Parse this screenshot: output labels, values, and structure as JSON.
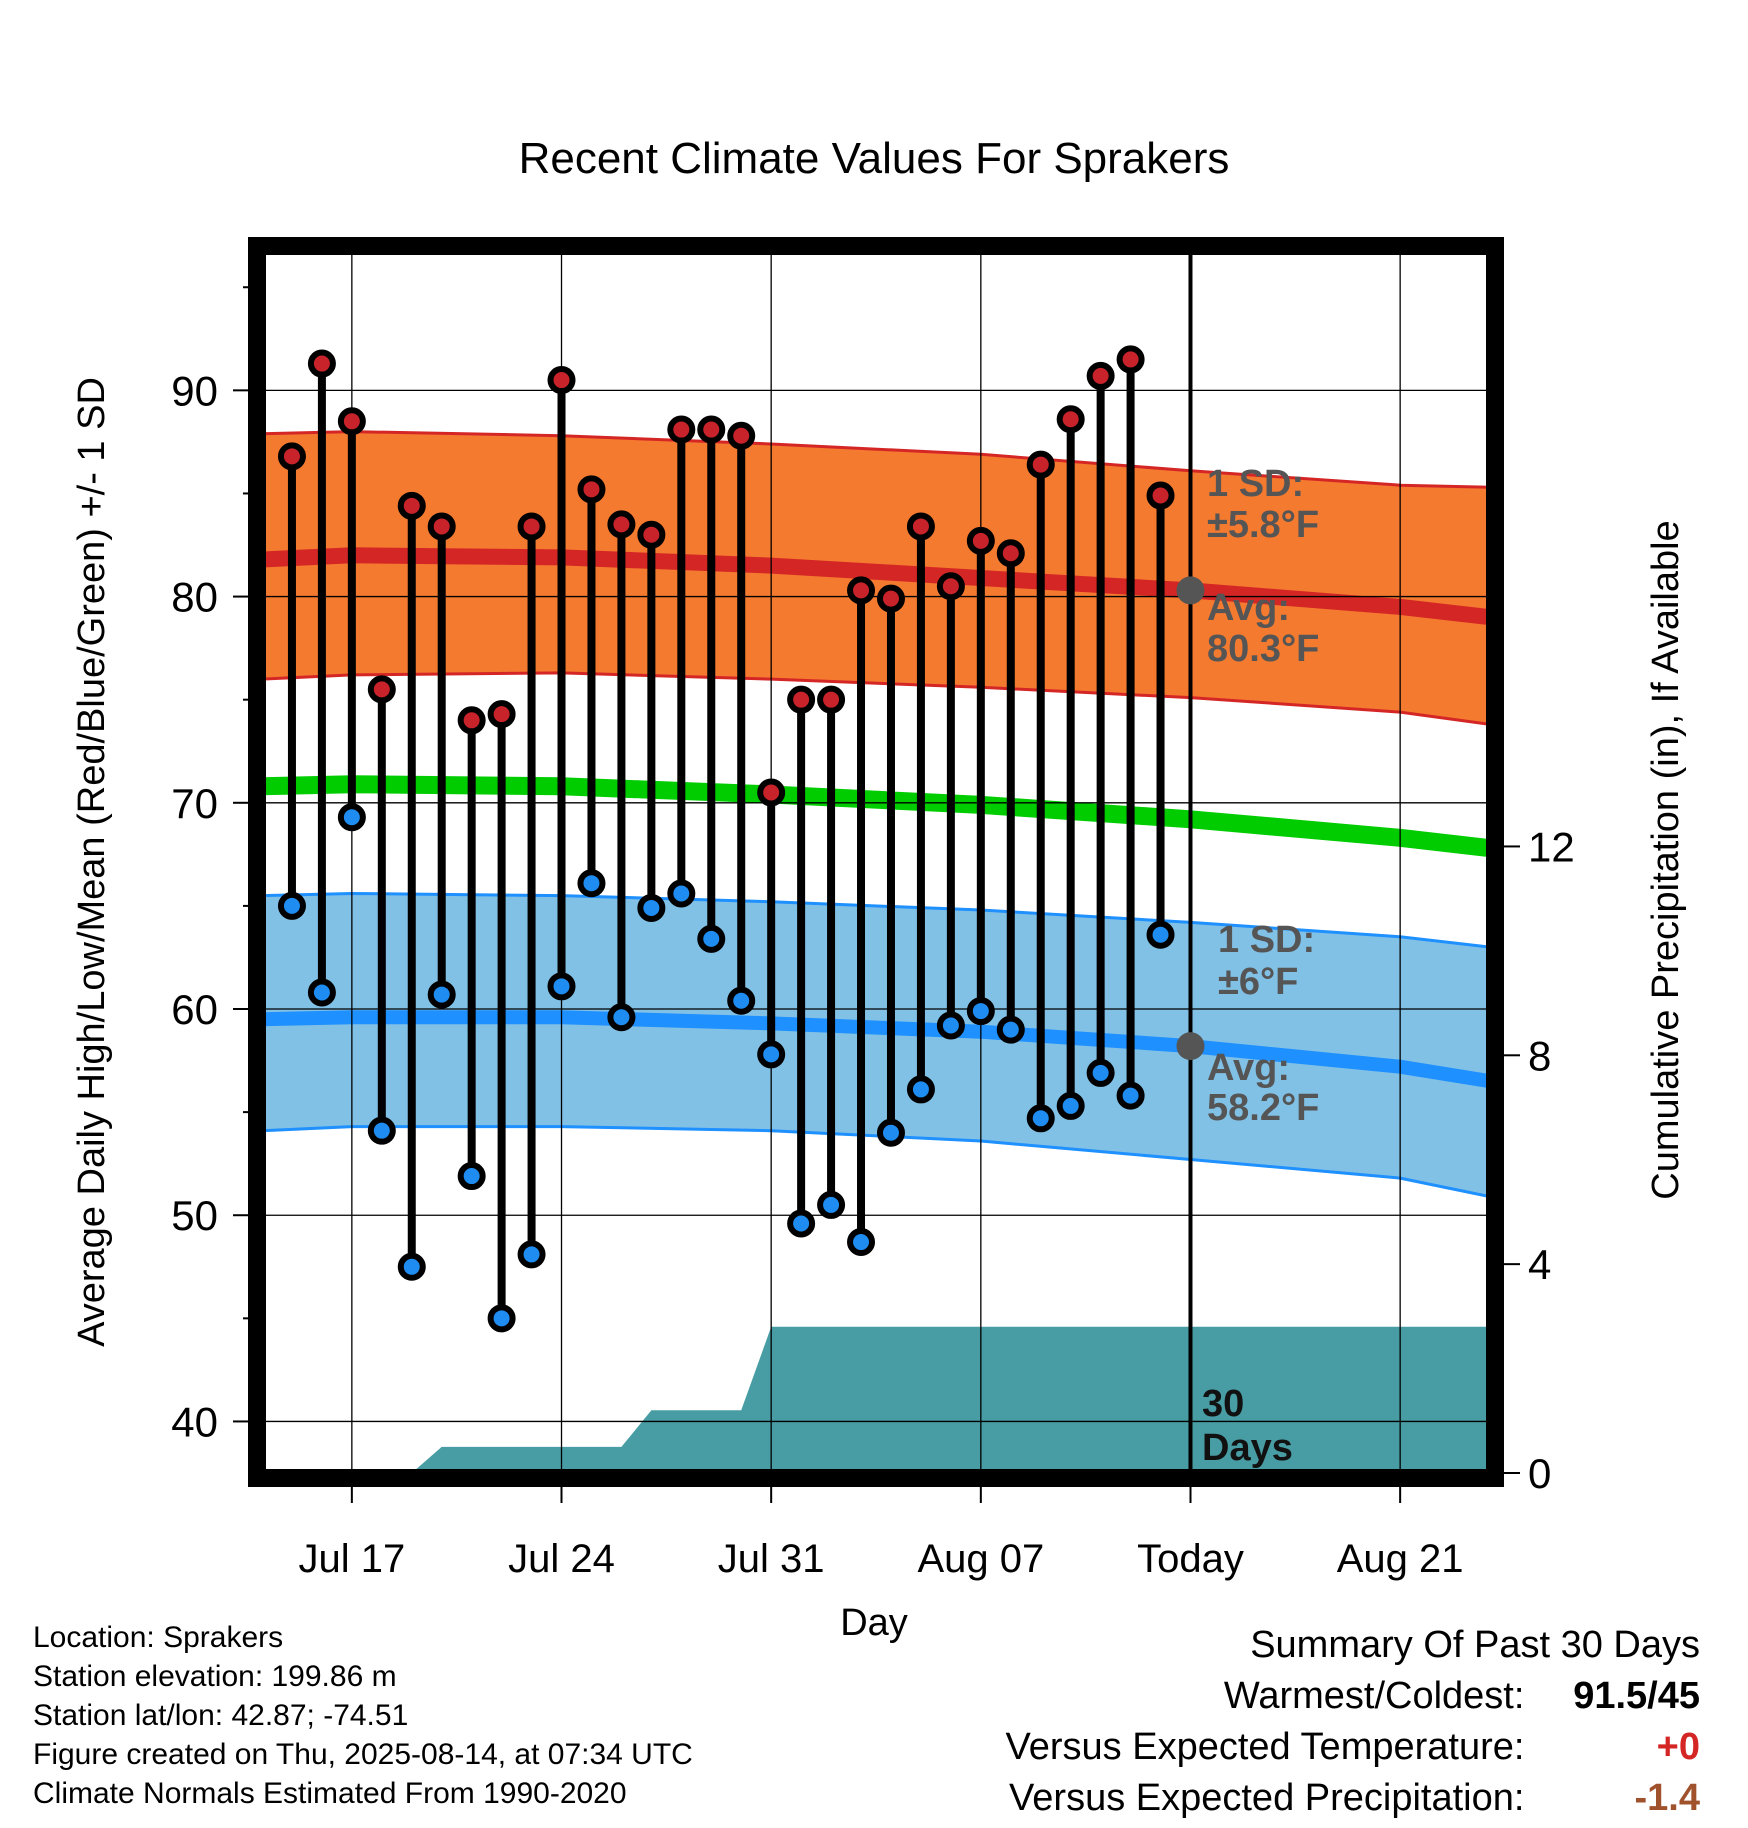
{
  "chart_data": {
    "type": "line",
    "title": "Recent Climate Values For Sprakers",
    "xlabel": "Day",
    "ylabel": "Average Daily High/Low/Mean (Red/Blue/Green) +/- 1 SD",
    "y2label": "Cumulative Precipitation (in), If Available",
    "ylim": [
      37.5,
      97
    ],
    "y_ticks": [
      40,
      50,
      60,
      70,
      80,
      90
    ],
    "y2lim": [
      0,
      23.5
    ],
    "y2_ticks": [
      0,
      4,
      8,
      12
    ],
    "x_ticks": [
      {
        "date": "2025-07-17",
        "label": "Jul 17"
      },
      {
        "date": "2025-07-24",
        "label": "Jul 24"
      },
      {
        "date": "2025-07-31",
        "label": "Jul 31"
      },
      {
        "date": "2025-08-07",
        "label": "Aug 07"
      },
      {
        "date": "2025-08-14",
        "label": "Today"
      },
      {
        "date": "2025-08-21",
        "label": "Aug 21"
      }
    ],
    "xlim": [
      "2025-07-14",
      "2025-08-24"
    ],
    "today": "2025-08-14",
    "days_marker": {
      "value": "30",
      "unit": "Days"
    },
    "daily": [
      {
        "date": "2025-07-15",
        "high": 86.8,
        "low": 65.0
      },
      {
        "date": "2025-07-16",
        "high": 91.3,
        "low": 60.8
      },
      {
        "date": "2025-07-17",
        "high": 88.5,
        "low": 69.3
      },
      {
        "date": "2025-07-18",
        "high": 75.5,
        "low": 54.1
      },
      {
        "date": "2025-07-19",
        "high": 84.4,
        "low": 47.5
      },
      {
        "date": "2025-07-20",
        "high": 83.4,
        "low": 60.7
      },
      {
        "date": "2025-07-21",
        "high": 74.0,
        "low": 51.9
      },
      {
        "date": "2025-07-22",
        "high": 74.3,
        "low": 45.0
      },
      {
        "date": "2025-07-23",
        "high": 83.4,
        "low": 48.1
      },
      {
        "date": "2025-07-24",
        "high": 90.5,
        "low": 61.1
      },
      {
        "date": "2025-07-25",
        "high": 85.2,
        "low": 66.1
      },
      {
        "date": "2025-07-26",
        "high": 83.5,
        "low": 59.6
      },
      {
        "date": "2025-07-27",
        "high": 83.0,
        "low": 64.9
      },
      {
        "date": "2025-07-28",
        "high": 88.1,
        "low": 65.6
      },
      {
        "date": "2025-07-29",
        "high": 88.1,
        "low": 63.4
      },
      {
        "date": "2025-07-30",
        "high": 87.8,
        "low": 60.4
      },
      {
        "date": "2025-07-31",
        "high": 70.5,
        "low": 57.8
      },
      {
        "date": "2025-08-01",
        "high": 75.0,
        "low": 49.6
      },
      {
        "date": "2025-08-02",
        "high": 75.0,
        "low": 50.5
      },
      {
        "date": "2025-08-03",
        "high": 80.3,
        "low": 48.7
      },
      {
        "date": "2025-08-04",
        "high": 79.9,
        "low": 54.0
      },
      {
        "date": "2025-08-05",
        "high": 83.4,
        "low": 56.1
      },
      {
        "date": "2025-08-06",
        "high": 80.5,
        "low": 59.2
      },
      {
        "date": "2025-08-07",
        "high": 82.7,
        "low": 59.9
      },
      {
        "date": "2025-08-08",
        "high": 82.1,
        "low": 59.0
      },
      {
        "date": "2025-08-09",
        "high": 86.4,
        "low": 54.7
      },
      {
        "date": "2025-08-10",
        "high": 88.6,
        "low": 55.3
      },
      {
        "date": "2025-08-11",
        "high": 90.7,
        "low": 56.9
      },
      {
        "date": "2025-08-12",
        "high": 91.5,
        "low": 55.8
      },
      {
        "date": "2025-08-13",
        "high": 84.9,
        "low": 63.6
      }
    ],
    "normal_high": {
      "dates": [
        "2025-07-14",
        "2025-07-17",
        "2025-07-24",
        "2025-07-31",
        "2025-08-07",
        "2025-08-14",
        "2025-08-21",
        "2025-08-24"
      ],
      "mean": [
        81.8,
        82.0,
        81.9,
        81.5,
        80.9,
        80.3,
        79.5,
        79.0
      ],
      "upper": [
        87.9,
        88.0,
        87.8,
        87.4,
        86.9,
        86.1,
        85.4,
        85.3
      ],
      "lower": [
        76.0,
        76.2,
        76.3,
        76.0,
        75.6,
        75.1,
        74.4,
        73.8
      ]
    },
    "normal_mean": {
      "dates": [
        "2025-07-14",
        "2025-07-17",
        "2025-07-24",
        "2025-07-31",
        "2025-08-07",
        "2025-08-14",
        "2025-08-21",
        "2025-08-24"
      ],
      "mean": [
        70.8,
        70.9,
        70.8,
        70.4,
        69.9,
        69.2,
        68.3,
        67.8
      ]
    },
    "normal_low": {
      "dates": [
        "2025-07-14",
        "2025-07-17",
        "2025-07-24",
        "2025-07-31",
        "2025-08-07",
        "2025-08-14",
        "2025-08-21",
        "2025-08-24"
      ],
      "mean": [
        59.5,
        59.6,
        59.6,
        59.3,
        58.9,
        58.2,
        57.2,
        56.5
      ],
      "upper": [
        65.5,
        65.6,
        65.5,
        65.2,
        64.8,
        64.2,
        63.5,
        63.0
      ],
      "lower": [
        54.1,
        54.3,
        54.3,
        54.1,
        53.6,
        52.7,
        51.8,
        50.9
      ]
    },
    "precip": {
      "dates": [
        "2025-07-14",
        "2025-07-19",
        "2025-07-20",
        "2025-07-26",
        "2025-07-27",
        "2025-07-30",
        "2025-07-31",
        "2025-08-24"
      ],
      "values": [
        0,
        0,
        0.5,
        0.5,
        1.2,
        1.2,
        2.8,
        2.8
      ]
    },
    "annotations": {
      "high_sd_label": "1 SD:",
      "high_sd_value": "±5.8°F",
      "high_avg_label": "Avg:",
      "high_avg_value": "80.3°F",
      "low_sd_label": "1 SD:",
      "low_sd_value": "±6°F",
      "low_avg_label": "Avg:",
      "low_avg_value": "58.2°F",
      "today_high_avg": 80.3,
      "today_low_avg": 58.2
    },
    "colors": {
      "high_band": "#f47a2f",
      "high_line": "#d52626",
      "mean_line": "#00cc00",
      "low_band": "#82c1e6",
      "low_line": "#1e90ff",
      "precip": "#489da4",
      "high_dot": "#c8232a",
      "low_dot": "#1e8cf0",
      "annotation": "#555555"
    }
  },
  "info": {
    "location": "Location: Sprakers",
    "elevation": "Station elevation: 199.86 m",
    "latlon": "Station lat/lon: 42.87; -74.51",
    "created": "Figure created on Thu, 2025-08-14, at 07:34 UTC",
    "normals": "Climate Normals Estimated From 1990-2020"
  },
  "summary": {
    "title": "Summary Of Past 30 Days",
    "warmest_label": "Warmest/Coldest:",
    "warmest_value": "91.5/45",
    "temp_label": "Versus Expected Temperature:",
    "temp_value": "+0",
    "temp_color": "#d52626",
    "precip_label": "Versus Expected Precipitation:",
    "precip_value": "-1.4",
    "precip_color": "#a0522d"
  }
}
